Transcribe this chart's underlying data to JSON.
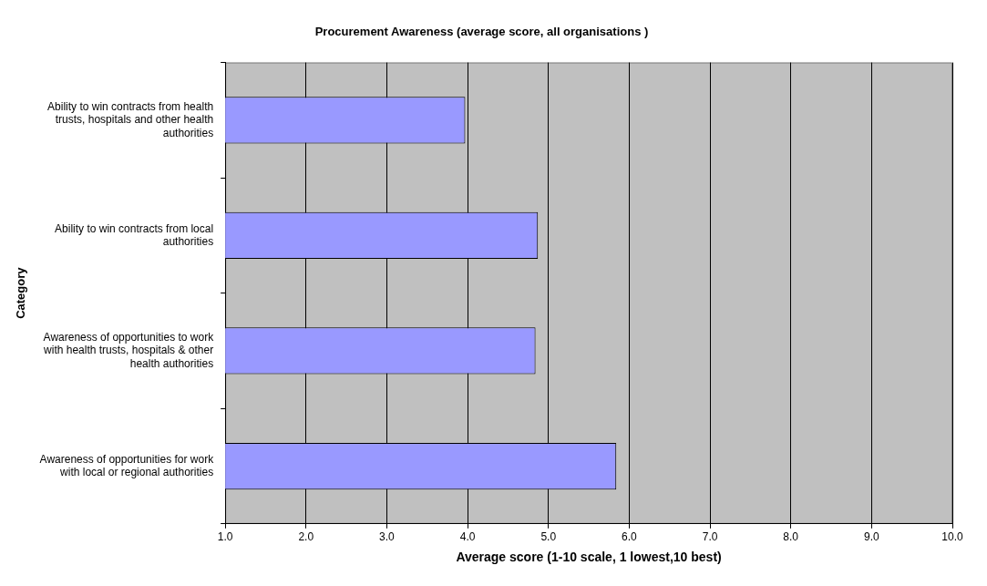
{
  "chart_data": {
    "type": "bar",
    "orientation": "horizontal",
    "title": "Procurement Awareness (average score, all organisations )",
    "xlabel": "Average score (1-10 scale, 1 lowest,10 best)",
    "ylabel": "Category",
    "categories": [
      "Ability to win contracts from health trusts, hospitals and other health authorities",
      "Ability to win contracts from local authorities",
      "Awareness of opportunities to work with health trusts, hospitals & other health authorities",
      "Awareness of opportunities for work with local or regional authorities"
    ],
    "values": [
      3.97,
      4.87,
      4.84,
      5.84
    ],
    "color": "#9999ff",
    "xlim": [
      1,
      10
    ],
    "xticks": [
      {
        "value": 1,
        "label": "1.0"
      },
      {
        "value": 2,
        "label": "2.0"
      },
      {
        "value": 3,
        "label": "3.0"
      },
      {
        "value": 4,
        "label": "4.0"
      },
      {
        "value": 5,
        "label": "5.0"
      },
      {
        "value": 6,
        "label": "6.0"
      },
      {
        "value": 7,
        "label": "7.0"
      },
      {
        "value": 8,
        "label": "8.0"
      },
      {
        "value": 9,
        "label": "9.0"
      },
      {
        "value": 10,
        "label": "10.0"
      }
    ],
    "grid": "x",
    "legend": false
  }
}
